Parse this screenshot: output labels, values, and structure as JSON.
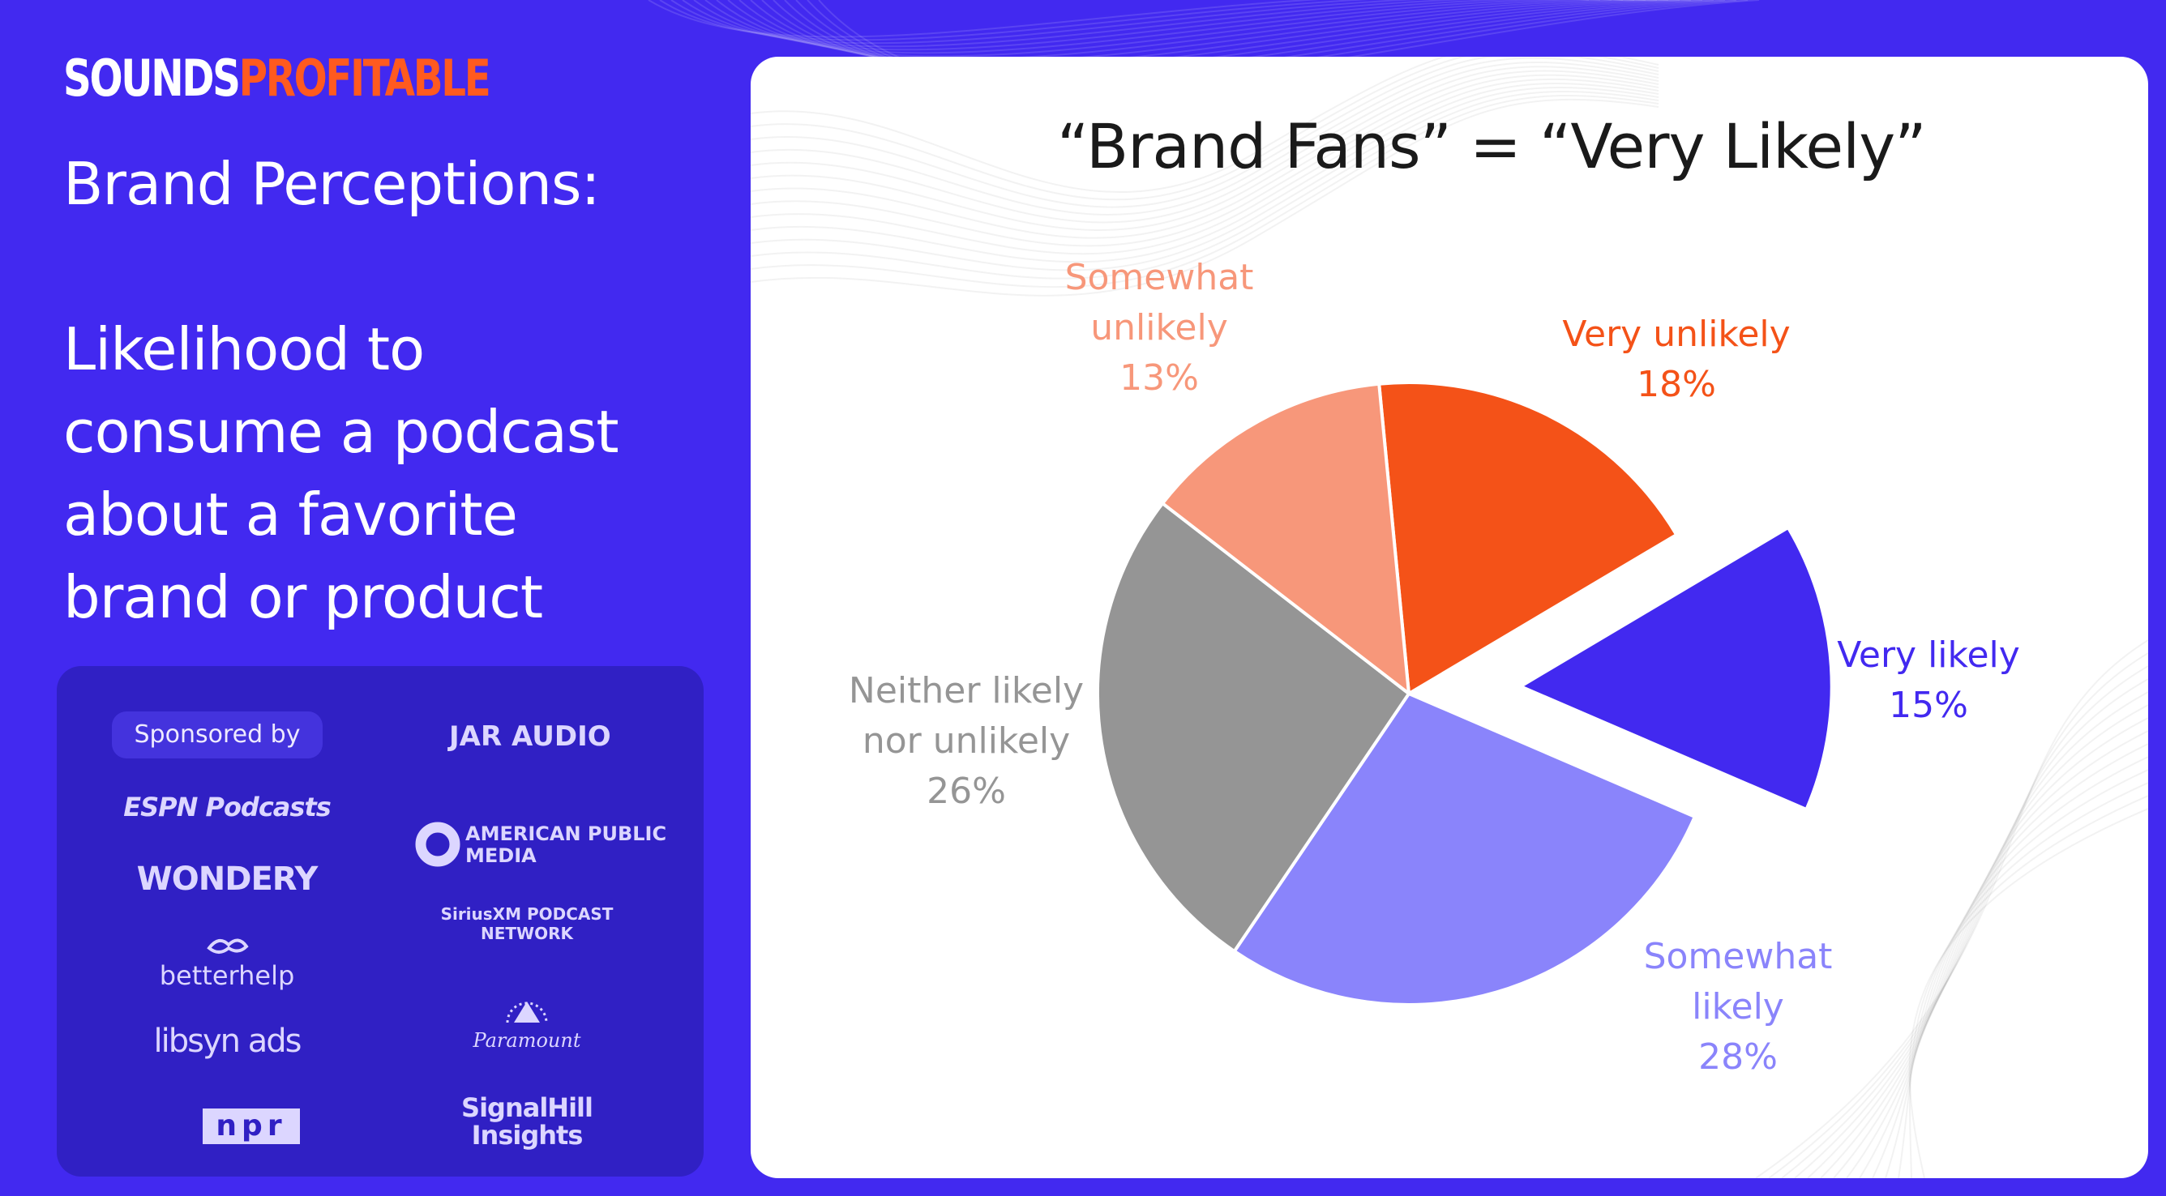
{
  "brand": {
    "logo_white": "SOUNDS",
    "logo_orange": "PROFITABLE"
  },
  "heading": {
    "line1": "Brand Perceptions:",
    "line2": "Likelihood to",
    "line3": "consume a podcast",
    "line4": "about a favorite",
    "line5": "brand or product"
  },
  "sponsors": {
    "label": "Sponsored by",
    "items": [
      "JAR AUDIO",
      "ESPN Podcasts",
      "AMERICAN PUBLIC MEDIA",
      "WONDERY",
      "SiriusXM PODCAST NETWORK",
      "betterhelp",
      "Paramount",
      "libsyn ads",
      "npr",
      "SignalHill Insights"
    ]
  },
  "colors": {
    "background": "#4229f0",
    "very_unlikely": "#f45218",
    "somewhat_unlikely": "#f7977a",
    "neither": "#959595",
    "somewhat_likely": "#8a84fb",
    "very_likely": "#4229f0"
  },
  "chart_data": {
    "type": "pie",
    "title": "“Brand Fans” = “Very Likely”",
    "slices": [
      {
        "label_lines": [
          "Very unlikely"
        ],
        "value": 18,
        "pct_text": "18%",
        "color": "#f45218",
        "exploded": false
      },
      {
        "label_lines": [
          "Very likely"
        ],
        "value": 15,
        "pct_text": "15%",
        "color": "#4229f0",
        "exploded": true
      },
      {
        "label_lines": [
          "Somewhat",
          "likely"
        ],
        "value": 28,
        "pct_text": "28%",
        "color": "#8a84fb",
        "exploded": false
      },
      {
        "label_lines": [
          "Neither likely",
          "nor unlikely"
        ],
        "value": 26,
        "pct_text": "26%",
        "color": "#959595",
        "exploded": false
      },
      {
        "label_lines": [
          "Somewhat",
          "unlikely"
        ],
        "value": 13,
        "pct_text": "13%",
        "color": "#f7977a",
        "exploded": false
      }
    ],
    "legend": "none"
  }
}
